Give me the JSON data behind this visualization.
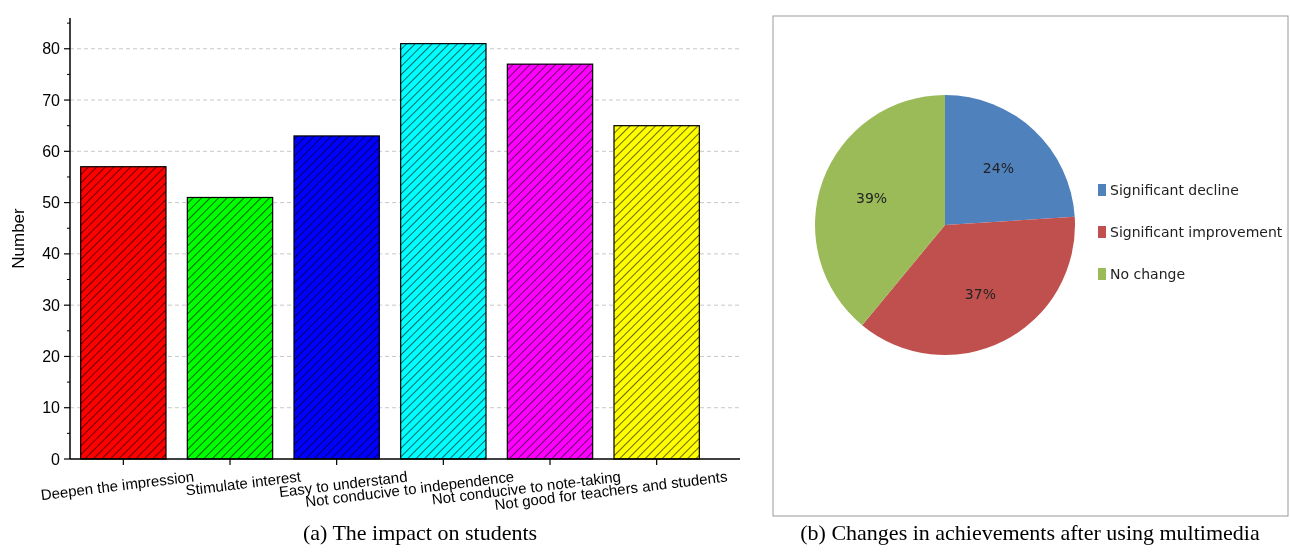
{
  "chart_data": [
    {
      "type": "bar",
      "title": "(a) The impact on students",
      "ylabel": "Number",
      "categories": [
        "Deepen the impression",
        "Stimulate interest",
        "Easy to understand",
        "Not conducive to independence",
        "Not conducive to note-taking",
        "Not good for teachers and students"
      ],
      "values": [
        57,
        51,
        63,
        81,
        77,
        65
      ],
      "colors": [
        "#ff0000",
        "#00ff00",
        "#0000ff",
        "#00ffff",
        "#ff00ff",
        "#ffff00"
      ],
      "ylim": [
        0,
        86
      ],
      "yticks": [
        0,
        10,
        20,
        30,
        40,
        50,
        60,
        70,
        80
      ],
      "grid": "y"
    },
    {
      "type": "pie",
      "title": "(b) Changes in achievements after using multimedia",
      "categories": [
        "Significant decline",
        "Significant improvement",
        "No change"
      ],
      "values": [
        24,
        37,
        39
      ],
      "colors": [
        "#4f81bd",
        "#c0504d",
        "#9bbb59"
      ],
      "value_labels": [
        "24%",
        "37%",
        "39%"
      ],
      "legend": "right"
    }
  ]
}
